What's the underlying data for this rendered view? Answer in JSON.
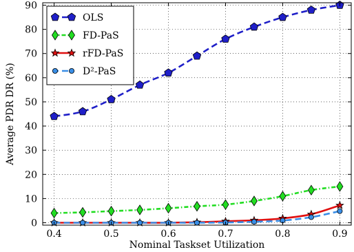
{
  "chart_data": {
    "type": "line",
    "xlabel": "Nominal Taskset Utilization",
    "ylabel": "Average PDR DR (%)",
    "x": [
      0.4,
      0.45,
      0.5,
      0.55,
      0.6,
      0.65,
      0.7,
      0.75,
      0.8,
      0.85,
      0.9
    ],
    "xlim": [
      0.38,
      0.92
    ],
    "ylim": [
      -1,
      91
    ],
    "x_ticks": [
      "0.4",
      "0.5",
      "0.6",
      "0.7",
      "0.8",
      "0.9"
    ],
    "y_ticks": [
      "0",
      "10",
      "20",
      "30",
      "40",
      "50",
      "60",
      "70",
      "80",
      "90"
    ],
    "grid": true,
    "legend_position": "top-left",
    "series": [
      {
        "name": "OLS",
        "color": "#1f1fc8",
        "marker": "pentagon",
        "line_style": "dashed",
        "values": [
          44,
          46,
          51,
          57,
          62,
          69,
          76,
          81,
          85,
          88,
          90
        ]
      },
      {
        "name": "FD-PaS",
        "color": "#22dd22",
        "marker": "diamond",
        "line_style": "dashdot",
        "values": [
          4,
          4.3,
          4.8,
          5.3,
          6,
          6.8,
          7.5,
          9,
          11,
          13.5,
          15
        ]
      },
      {
        "name": "rFD-PaS",
        "color": "#e01010",
        "marker": "star",
        "line_style": "solid",
        "values": [
          0,
          0,
          0,
          0,
          0,
          0.2,
          0.6,
          1,
          1.8,
          3.5,
          7.2
        ]
      },
      {
        "name": "D²-PaS",
        "color": "#3a8ee6",
        "marker": "circle",
        "line_style": "dashed",
        "values": [
          0,
          0,
          0,
          0,
          0,
          0,
          0.1,
          0.4,
          0.9,
          2.3,
          4.8
        ]
      }
    ]
  }
}
